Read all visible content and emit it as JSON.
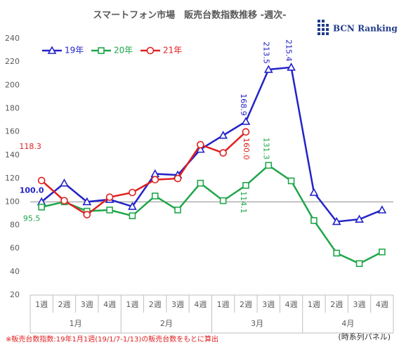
{
  "chart_data": {
    "type": "line",
    "title": "スマートフォン市場　販売台数指数推移 -週次-",
    "brand": "BCN Ranking",
    "footnote": "※販売台数指数:19年1月1週(19/1/7-1/13)の販売台数をもとに算出",
    "note": "(時系列パネル)",
    "categories": [
      "1週",
      "2週",
      "3週",
      "4週",
      "1週",
      "2週",
      "3週",
      "4週",
      "1週",
      "2週",
      "3週",
      "4週",
      "1週",
      "2週",
      "3週",
      "4週"
    ],
    "months": [
      "1月",
      "2月",
      "3月",
      "4月"
    ],
    "ylim": [
      20,
      240
    ],
    "yticks": [
      20,
      40,
      60,
      80,
      100,
      120,
      140,
      160,
      180,
      200,
      220,
      240
    ],
    "reference_line": 100,
    "series": [
      {
        "name": "19年",
        "color": "#2323c8",
        "marker": "triangle",
        "values": [
          100.0,
          116,
          100,
          102,
          96,
          124,
          123,
          145,
          157,
          168.9,
          213.5,
          215.4,
          108,
          83,
          85,
          93
        ],
        "value_labels": [
          "100.0",
          null,
          null,
          null,
          null,
          null,
          null,
          null,
          null,
          "168.9",
          "213.5",
          "215.4",
          null,
          null,
          null,
          null
        ]
      },
      {
        "name": "20年",
        "color": "#1fa64a",
        "marker": "square",
        "values": [
          95.5,
          100,
          92,
          93,
          88,
          105,
          93,
          116,
          101,
          114.1,
          131.3,
          118,
          84,
          56,
          47,
          57
        ],
        "value_labels": [
          "95.5",
          null,
          null,
          null,
          null,
          null,
          null,
          null,
          null,
          "114.1",
          "131.3",
          null,
          null,
          null,
          null,
          null
        ]
      },
      {
        "name": "21年",
        "color": "#e02020",
        "marker": "circle",
        "values": [
          118.3,
          101,
          89,
          104,
          108,
          119,
          120,
          149,
          142,
          160.0,
          null,
          null,
          null,
          null,
          null,
          null
        ],
        "value_labels": [
          "118.3",
          null,
          null,
          null,
          null,
          null,
          null,
          null,
          null,
          "160.0",
          null,
          null,
          null,
          null,
          null,
          null
        ]
      }
    ]
  }
}
